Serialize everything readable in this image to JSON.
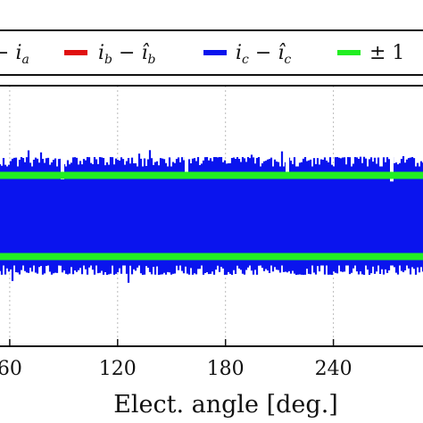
{
  "chart_data": {
    "type": "line",
    "xlabel": "Elect. angle [deg.]",
    "x_ticks": [
      "60",
      "120",
      "180",
      "240"
    ],
    "tick_values": [
      60,
      120,
      180,
      240
    ],
    "xlim": [
      45,
      315
    ],
    "ylim": [
      -1.75,
      1.75
    ],
    "grid": true,
    "legend": {
      "placement": "top",
      "entries": [
        {
          "label": "i_a − î_a",
          "color": "#222222"
        },
        {
          "label": "i_b − î_b",
          "color": "#e01010"
        },
        {
          "label": "i_c − î_c",
          "color": "#0a14ee"
        },
        {
          "label": "± 1",
          "color": "#22ee22"
        }
      ]
    },
    "series": [
      {
        "name": "i_c − î_c",
        "color": "#0a14ee",
        "envelope": {
          "upper_approx": 1.45,
          "lower_approx": -1.45
        }
      },
      {
        "name": "± 1",
        "color": "#22ee22",
        "values": [
          1,
          -1
        ]
      }
    ]
  }
}
